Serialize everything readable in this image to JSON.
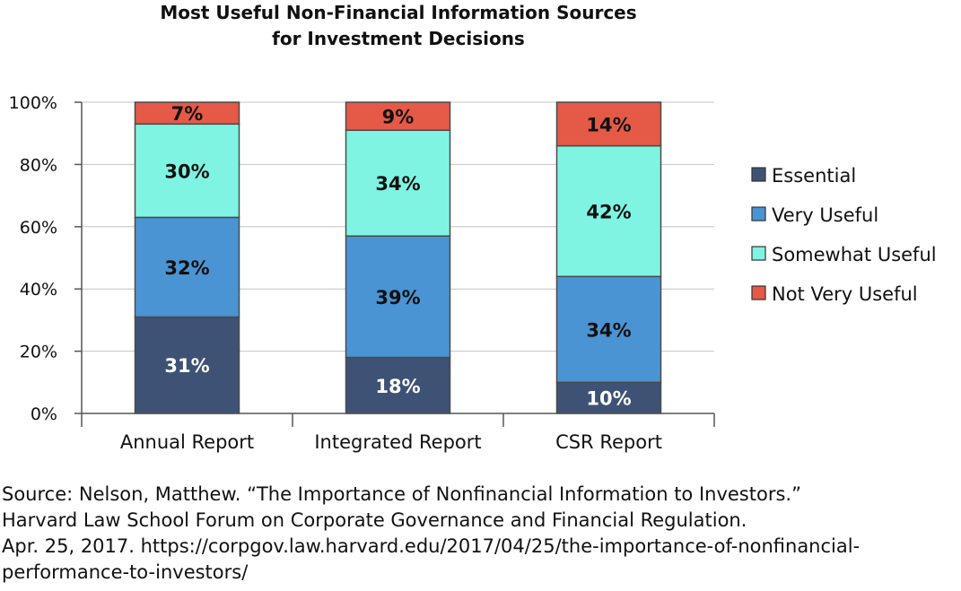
{
  "chart_data": {
    "type": "bar",
    "stacked": true,
    "title": [
      "Most Useful Non-Financial Information Sources",
      "for Investment Decisions"
    ],
    "categories": [
      "Annual Report",
      "Integrated Report",
      "CSR Report"
    ],
    "ylim": [
      0,
      100
    ],
    "yticks": [
      "0%",
      "20%",
      "40%",
      "60%",
      "80%",
      "100%"
    ],
    "grid": true,
    "legend_position": "right",
    "series": [
      {
        "name": "Essential",
        "color": "#3d5275",
        "label_color": "#ffffff",
        "values": [
          31,
          18,
          10
        ],
        "labels": [
          "31%",
          "18%",
          "10%"
        ]
      },
      {
        "name": "Very Useful",
        "color": "#4a94d4",
        "label_color": "#111111",
        "values": [
          32,
          39,
          34
        ],
        "labels": [
          "32%",
          "39%",
          "34%"
        ]
      },
      {
        "name": "Somewhat Useful",
        "color": "#7ff4e3",
        "label_color": "#111111",
        "values": [
          30,
          34,
          42
        ],
        "labels": [
          "30%",
          "34%",
          "42%"
        ]
      },
      {
        "name": "Not Very Useful",
        "color": "#e55a47",
        "label_color": "#111111",
        "values": [
          7,
          9,
          14
        ],
        "labels": [
          "7%",
          "9%",
          "14%"
        ]
      }
    ]
  },
  "source": {
    "lines": [
      "Source: Nelson, Matthew. “The Importance of Nonfinancial Information to Investors.”",
      "Harvard Law School  Forum on Corporate Governance and Financial Regulation.",
      "Apr. 25, 2017. https://corpgov.law.harvard.edu/2017/04/25/the-importance-of-nonfinancial-",
      "performance-to-investors/"
    ]
  }
}
